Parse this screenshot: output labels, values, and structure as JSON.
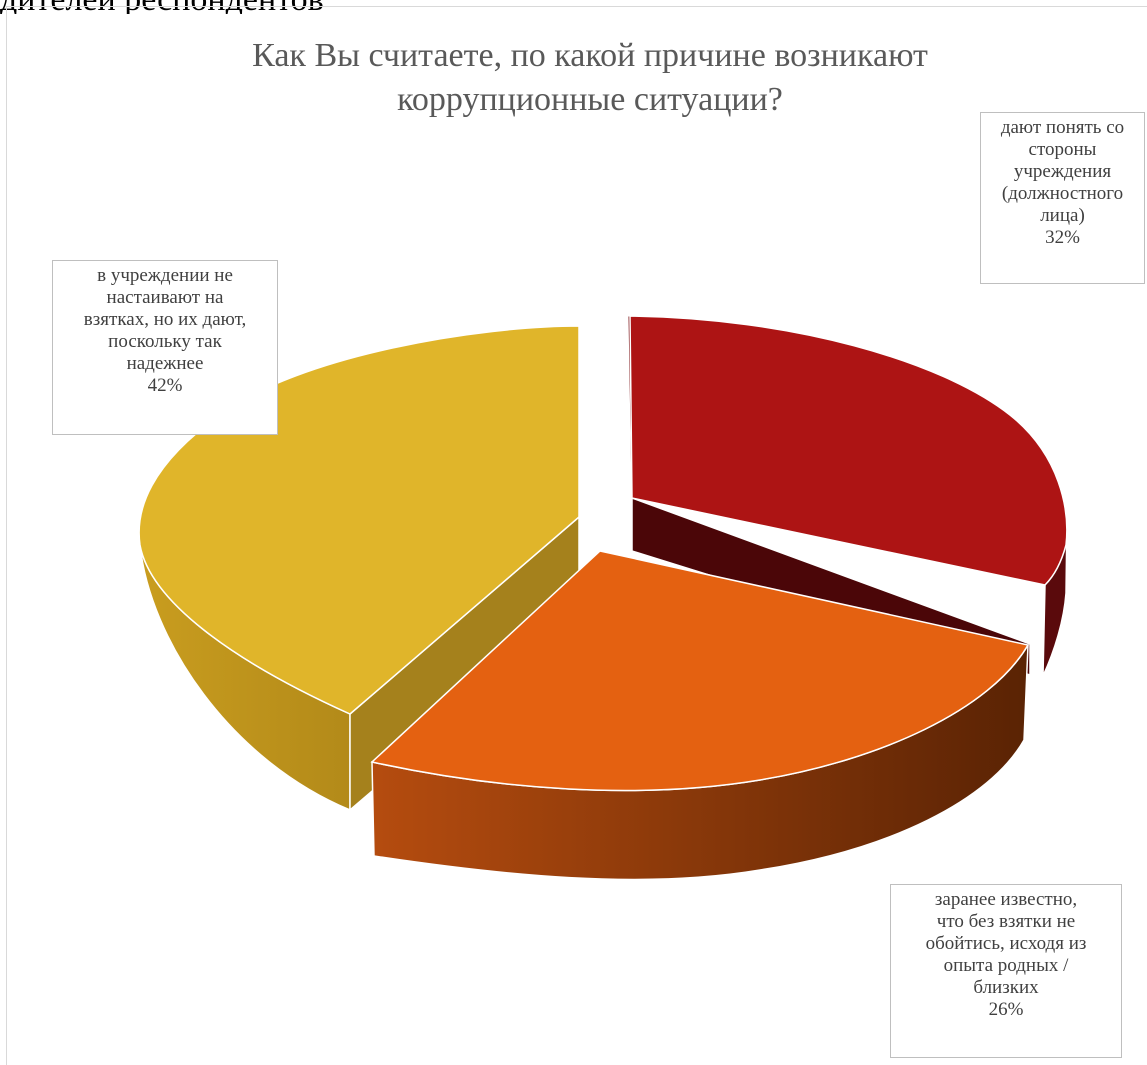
{
  "header_fragment": "дителей респондентов",
  "chart_data": {
    "type": "pie",
    "title": "Как Вы считаете, по какой причине возникают коррупционные ситуации?",
    "slices": [
      {
        "label": "дают понять со стороны учреждения (должностного лица)",
        "label_lines": [
          "дают понять со",
          "стороны",
          "учреждения",
          "(должностного",
          "лица)"
        ],
        "value": 32,
        "value_text": "32%",
        "color": "#ad1414"
      },
      {
        "label": "заранее известно, что без взятки не обойтись, исходя из опыта родных / близких",
        "label_lines": [
          "заранее известно,",
          "что без взятки не",
          "обойтись, исходя из",
          "опыта родных /",
          "близких"
        ],
        "value": 26,
        "value_text": "26%",
        "color": "#e46111"
      },
      {
        "label": "в учреждении не настаивают на взятках, но их дают, поскольку так надежнее",
        "label_lines": [
          "в учреждении не",
          "настаивают на",
          "взятках, но их дают,",
          "поскольку так",
          "надежнее"
        ],
        "value": 42,
        "value_text": "42%",
        "color": "#e0b52a"
      }
    ],
    "style": "3d-exploded-pie",
    "legend": "none"
  }
}
